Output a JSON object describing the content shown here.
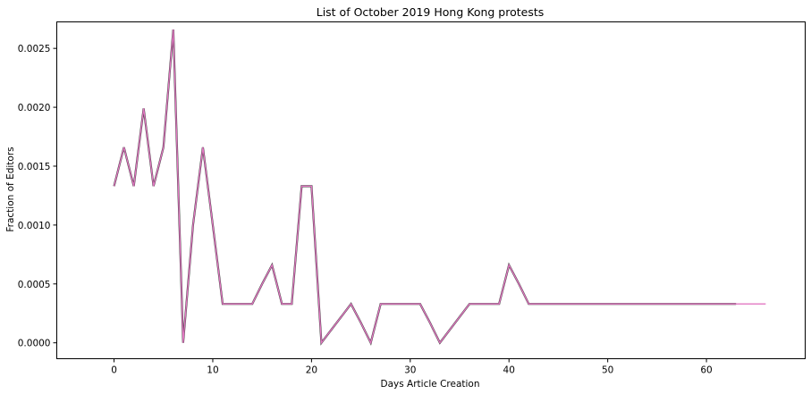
{
  "chart_data": {
    "type": "line",
    "title": "List of October 2019 Hong Kong protests",
    "xlabel": "Days Article Creation",
    "ylabel": "Fraction of Editors",
    "xlim": [
      -5.8,
      70
    ],
    "ylim": [
      -0.000135,
      0.002725
    ],
    "xticks": [
      0,
      10,
      20,
      30,
      40,
      50,
      60
    ],
    "yticks": [
      0.0,
      0.0005,
      0.001,
      0.0015,
      0.002,
      0.0025
    ],
    "xtick_labels": [
      "0",
      "10",
      "20",
      "30",
      "40",
      "50",
      "60"
    ],
    "ytick_labels": [
      "0.0000",
      "0.0005",
      "0.0010",
      "0.0015",
      "0.0020",
      "0.0025"
    ],
    "grid": false,
    "legend": "none",
    "series": [
      {
        "color": "#3a3a3a",
        "x": [
          0,
          1,
          2,
          3,
          4,
          5,
          6,
          7,
          8,
          9,
          10,
          11,
          12,
          13,
          14,
          15,
          16,
          17,
          18,
          19,
          20,
          21,
          22,
          23,
          24,
          25,
          26,
          27,
          28,
          29,
          30,
          31,
          32,
          33,
          34,
          35,
          36,
          37,
          38,
          39,
          40,
          41,
          42,
          43,
          44,
          45,
          46,
          47,
          48,
          49,
          50,
          51,
          52,
          53,
          54,
          55,
          56,
          57,
          58,
          59,
          60,
          61,
          62,
          63
        ],
        "y": [
          0.00133,
          0.00166,
          0.00133,
          0.00199,
          0.00133,
          0.00166,
          0.00266,
          0.0,
          0.001,
          0.00166,
          0.001,
          0.00033,
          0.00033,
          0.00033,
          0.00033,
          0.0005,
          0.00066,
          0.00033,
          0.00033,
          0.00133,
          0.00133,
          0.0,
          0.00011,
          0.00022,
          0.00033,
          0.00017,
          0.0,
          0.00033,
          0.00033,
          0.00033,
          0.00033,
          0.00033,
          0.00017,
          0.0,
          0.00011,
          0.00022,
          0.00033,
          0.00033,
          0.00033,
          0.00033,
          0.00066,
          0.0005,
          0.00033,
          0.00033,
          0.00033,
          0.00033,
          0.00033,
          0.00033,
          0.00033,
          0.00033,
          0.00033,
          0.00033,
          0.00033,
          0.00033,
          0.00033,
          0.00033,
          0.00033,
          0.00033,
          0.00033,
          0.00033,
          0.00033,
          0.00033,
          0.00033,
          0.00033
        ]
      },
      {
        "color": "#e377c2",
        "x": [
          0,
          1,
          2,
          3,
          4,
          5,
          6,
          7,
          8,
          9,
          10,
          11,
          12,
          13,
          14,
          15,
          16,
          17,
          18,
          19,
          20,
          21,
          22,
          23,
          24,
          25,
          26,
          27,
          28,
          29,
          30,
          31,
          32,
          33,
          34,
          35,
          36,
          37,
          38,
          39,
          40,
          41,
          42,
          43,
          44,
          45,
          46,
          47,
          48,
          49,
          50,
          51,
          52,
          53,
          54,
          55,
          56,
          57,
          58,
          59,
          60,
          61,
          62,
          63,
          64,
          65,
          66
        ],
        "y": [
          0.00133,
          0.00166,
          0.00133,
          0.00199,
          0.00133,
          0.00166,
          0.00266,
          0.0,
          0.001,
          0.00166,
          0.001,
          0.00033,
          0.00033,
          0.00033,
          0.00033,
          0.0005,
          0.00066,
          0.00033,
          0.00033,
          0.00133,
          0.00133,
          0.0,
          0.00011,
          0.00022,
          0.00033,
          0.00017,
          0.0,
          0.00033,
          0.00033,
          0.00033,
          0.00033,
          0.00033,
          0.00017,
          0.0,
          0.00011,
          0.00022,
          0.00033,
          0.00033,
          0.00033,
          0.00033,
          0.00066,
          0.0005,
          0.00033,
          0.00033,
          0.00033,
          0.00033,
          0.00033,
          0.00033,
          0.00033,
          0.00033,
          0.00033,
          0.00033,
          0.00033,
          0.00033,
          0.00033,
          0.00033,
          0.00033,
          0.00033,
          0.00033,
          0.00033,
          0.00033,
          0.00033,
          0.00033,
          0.00033,
          0.00033,
          0.00033,
          0.00033
        ]
      }
    ]
  }
}
